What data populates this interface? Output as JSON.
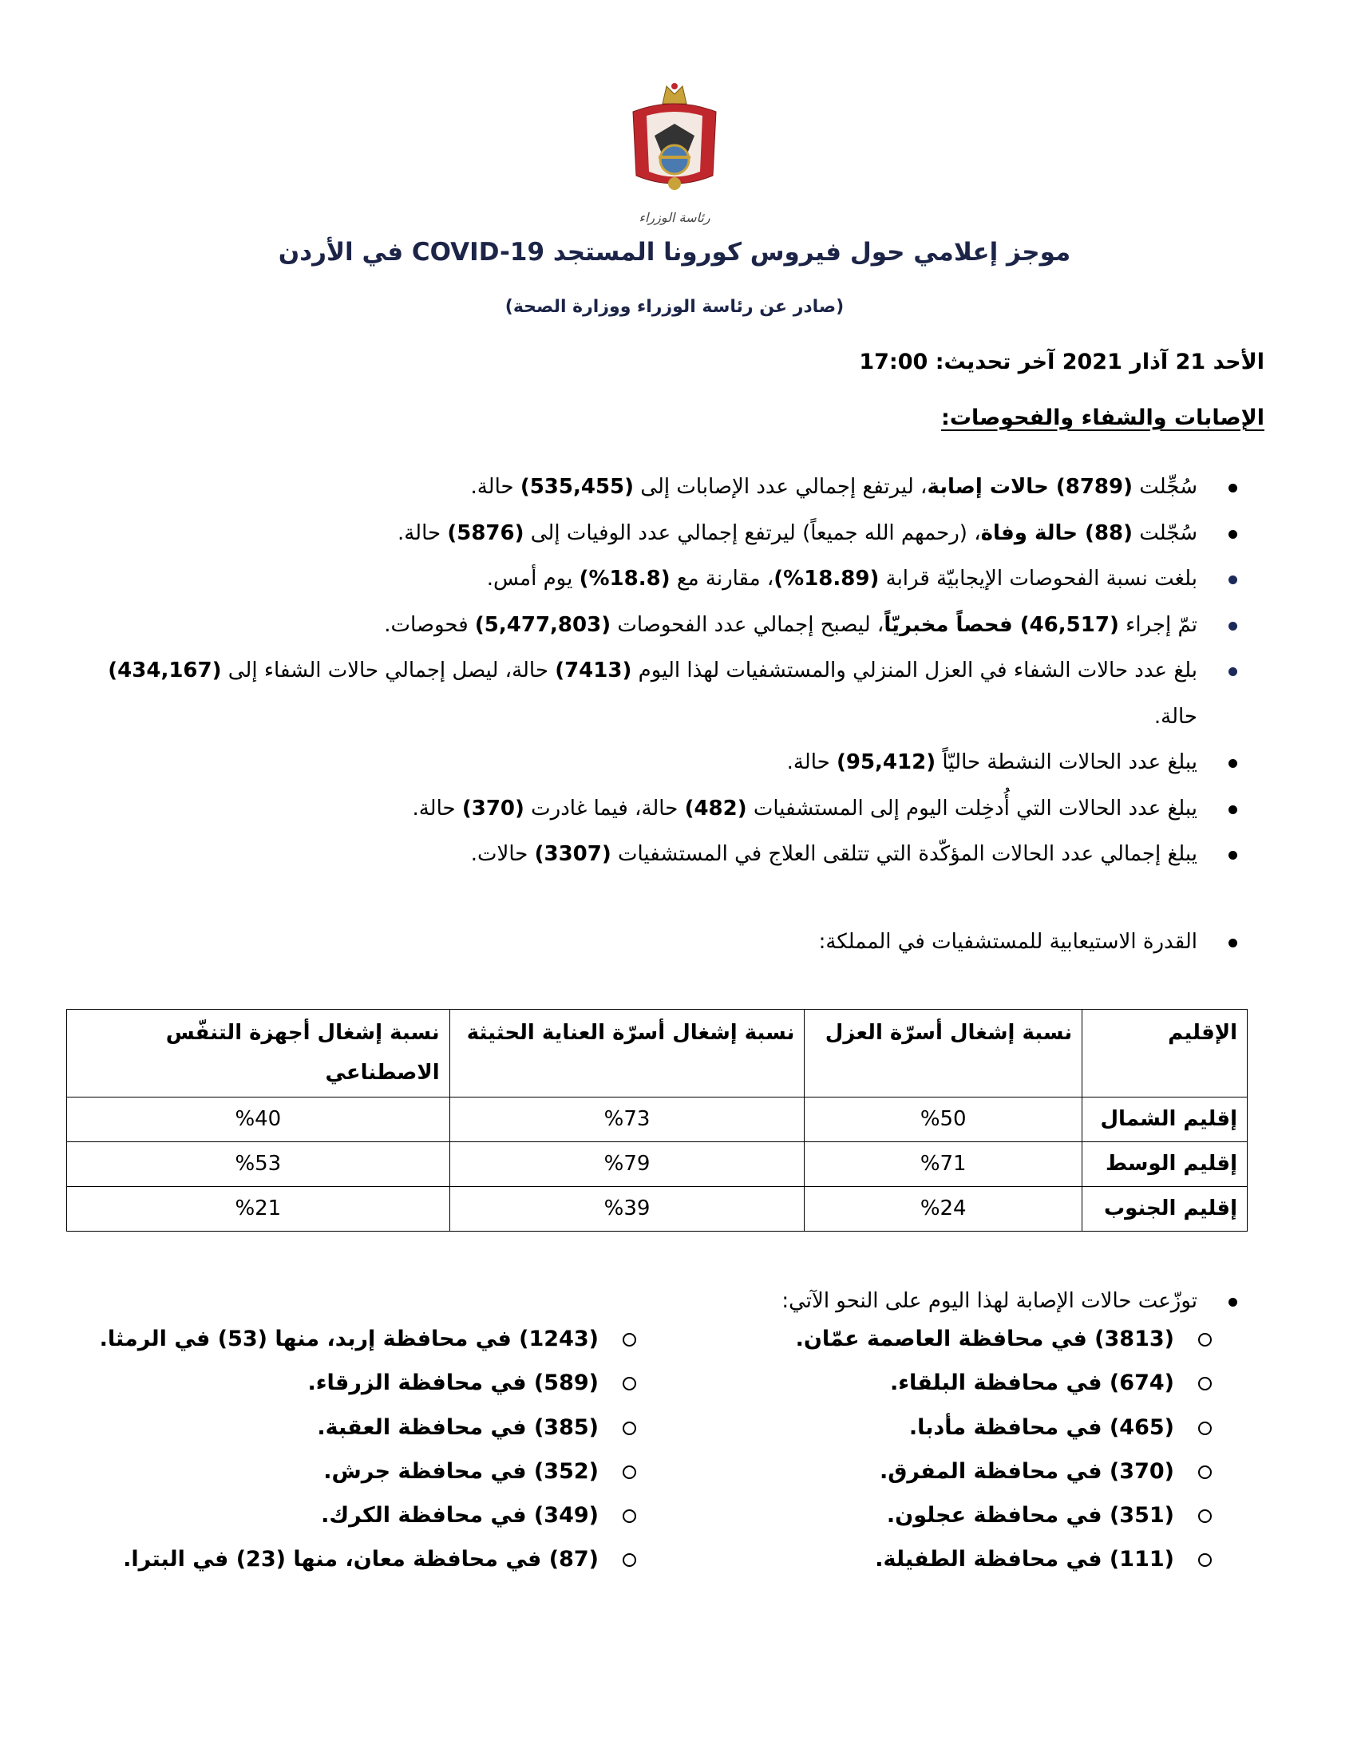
{
  "header": {
    "logo_text": "رئاسة الوزراء",
    "title": "موجز إعلامي حول فيروس كورونا المستجد COVID-19 في الأردن",
    "subtitle": "(صادر عن رئاسة الوزراء ووزارة الصحة)",
    "dateline": "الأحد 21 آذار 2021 آخر تحديث: 17:00",
    "section_heading": "الإصابات والشفاء والفحوصات:"
  },
  "items": [
    {
      "p": [
        "سُجِّلت ",
        "(8789) حالات إصابة",
        "، ليرتفع إجمالي عدد الإصابات إلى ",
        "(535,455)",
        " حالة."
      ]
    },
    {
      "p": [
        "سُجّلت ",
        "(88) حالة وفاة",
        "، (رحمهم الله جميعاً) ليرتفع إجمالي عدد الوفيات إلى ",
        "(5876)",
        " حالة."
      ]
    },
    {
      "p": [
        "بلغت نسبة الفحوصات الإيجابيّة قرابة ",
        "(18.89%)",
        "، مقارنة مع ",
        "(18.8%)",
        " يوم أمس."
      ]
    },
    {
      "p": [
        "تمّ إجراء ",
        "(46,517) فحصاً مخبريّاً",
        "، ليصبح إجمالي عدد الفحوصات ",
        "(5,477,803)",
        " فحوصات."
      ]
    },
    {
      "p": [
        "بلغ عدد حالات الشفاء في العزل المنزلي والمستشفيات لهذا اليوم ",
        "(7413)",
        " حالة، ليصل إجمالي حالات الشفاء إلى ",
        "(434,167)",
        " حالة."
      ]
    },
    {
      "p": [
        "يبلغ عدد الحالات النشطة حاليّاً ",
        "(95,412)",
        " حالة."
      ]
    },
    {
      "p": [
        "يبلغ عدد الحالات التي أُدخِلت اليوم إلى المستشفيات ",
        "(482)",
        " حالة، فيما غادرت ",
        "(370)",
        " حالة."
      ]
    },
    {
      "p": [
        "يبلغ إجمالي عدد الحالات المؤكّدة التي تتلقى العلاج في المستشفيات ",
        "(3307)",
        " حالات."
      ]
    }
  ],
  "capacity": {
    "label": "القدرة الاستيعابية للمستشفيات في المملكة:",
    "headers": [
      "الإقليم",
      "نسبة إشغال أسرّة العزل",
      "نسبة إشغال أسرّة العناية الحثيثة",
      "نسبة إشغال أجهزة التنفّس الاصطناعي"
    ],
    "rows": [
      [
        "إقليم الشمال",
        "%50",
        "%73",
        "%40"
      ],
      [
        "إقليم الوسط",
        "%71",
        "%79",
        "%53"
      ],
      [
        "إقليم الجنوب",
        "%24",
        "%39",
        "%21"
      ]
    ]
  },
  "distribution": {
    "label": "توزّعت حالات الإصابة لهذا اليوم على النحو الآتي:",
    "right": [
      "(3813) في محافظة العاصمة عمّان.",
      "(674) في محافظة البلقاء.",
      "(465) في محافظة مأدبا.",
      "(370) في محافظة المفرق.",
      "(351) في محافظة عجلون.",
      "(111) في محافظة الطفيلة."
    ],
    "left": [
      "(1243) في محافظة إربد، منها (53) في الرمثا.",
      "(589) في محافظة الزرقاء.",
      "(385) في محافظة العقبة.",
      "(352) في محافظة جرش.",
      "(349) في محافظة الكرك.",
      "(87) في محافظة معان، منها (23) في البترا."
    ]
  },
  "colors": {
    "title": "#1c2447",
    "emblem_red": "#c0272d",
    "emblem_gold": "#c9a23a"
  }
}
